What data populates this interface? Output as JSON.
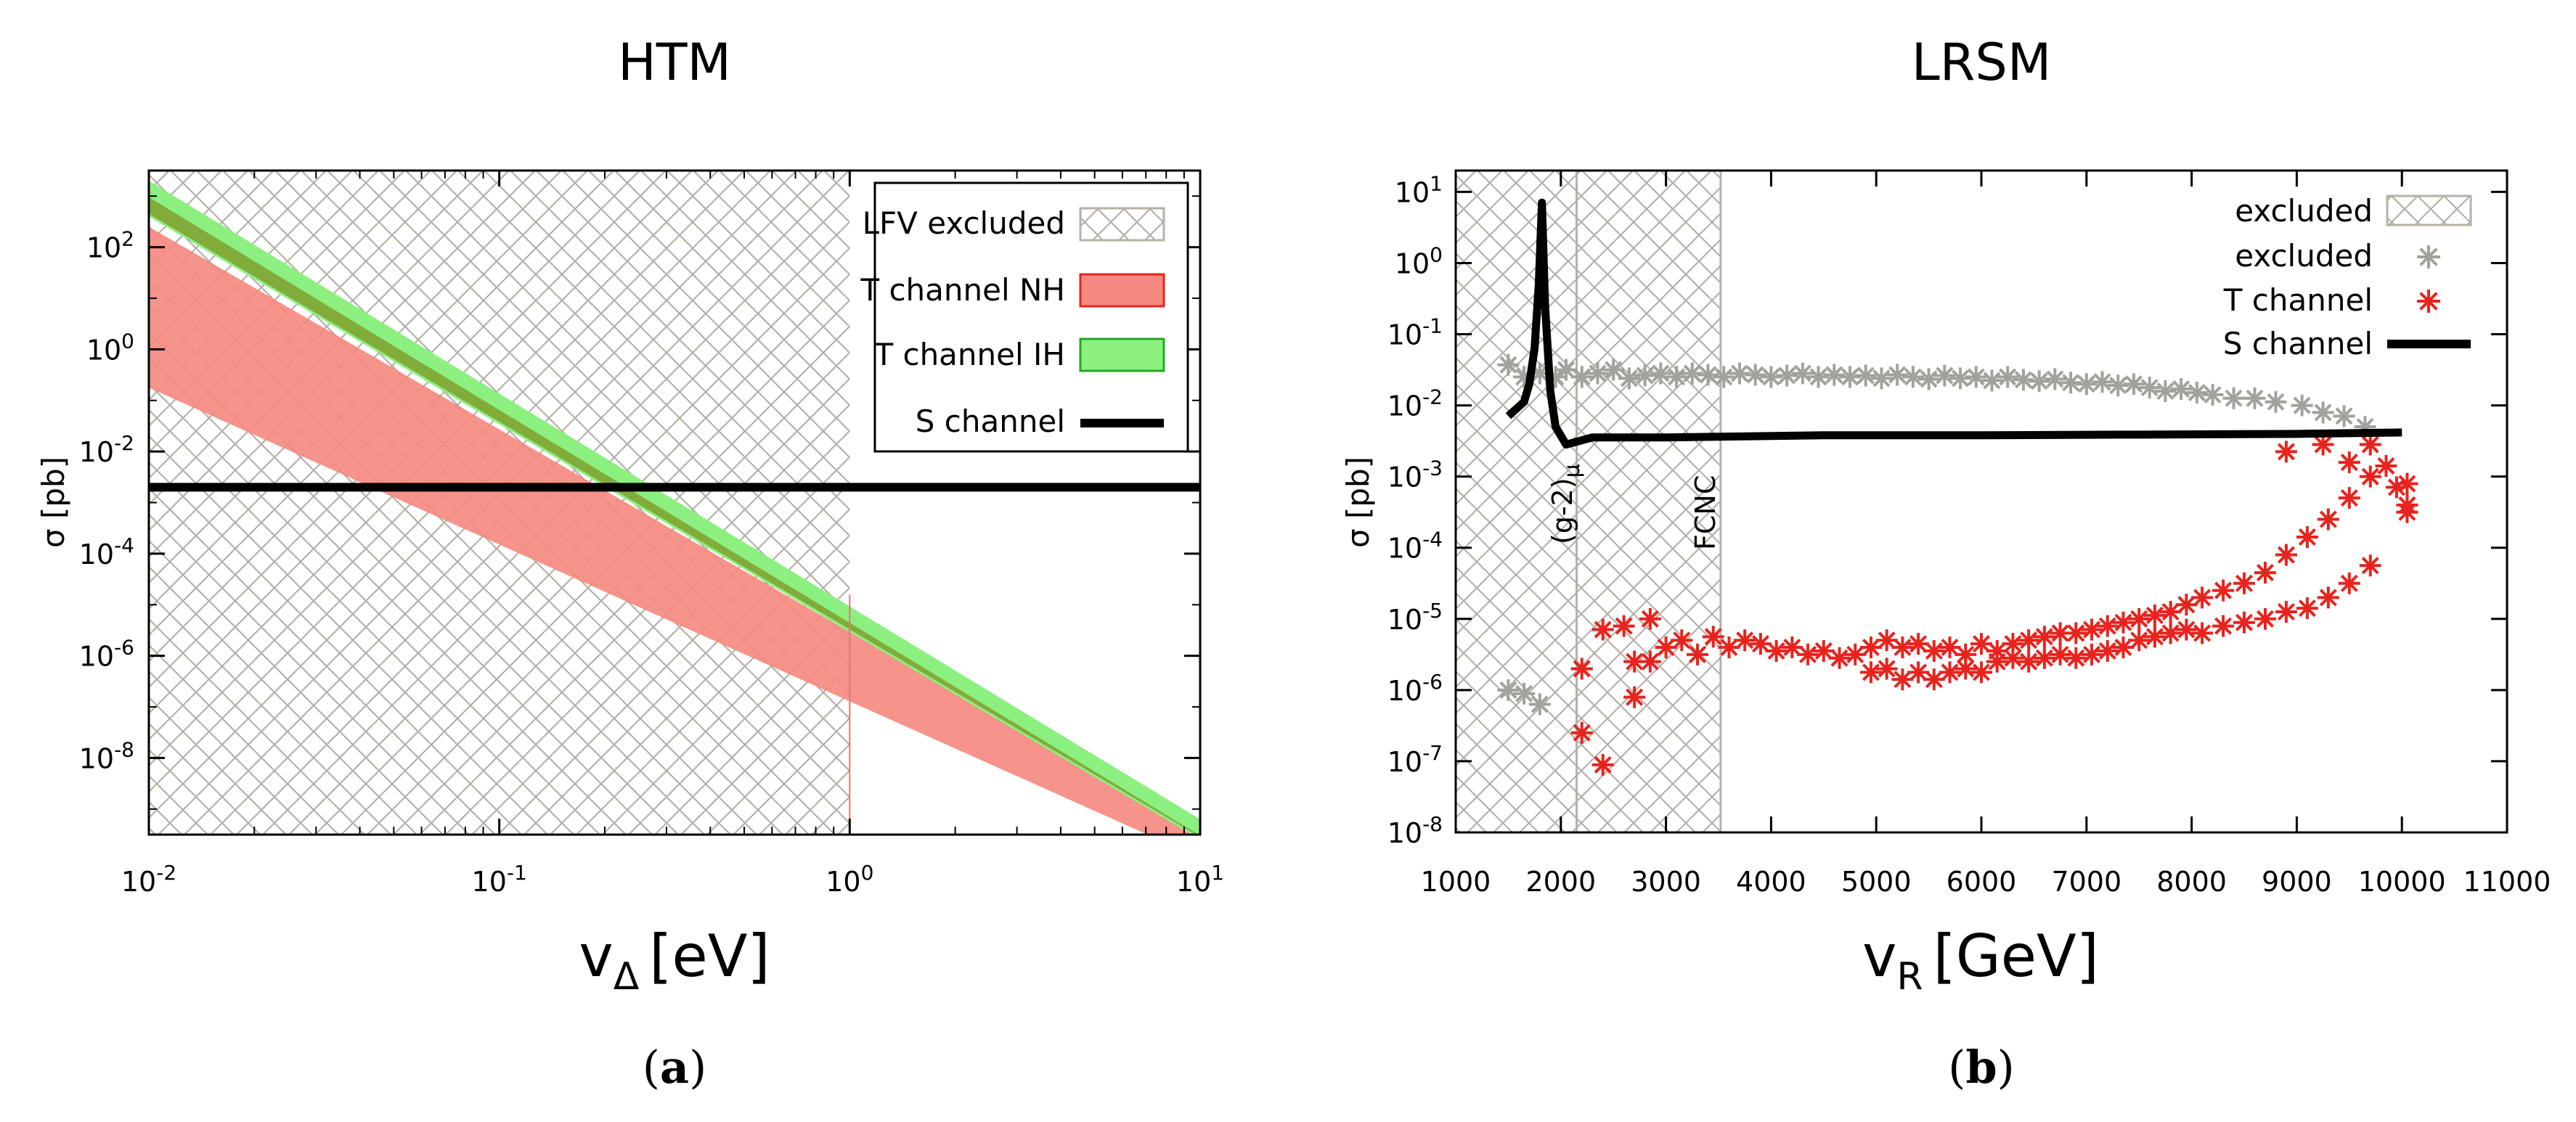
{
  "chart_data": [
    {
      "id": "a",
      "type": "area",
      "title": "HTM",
      "subfigure_label": "(a)",
      "xlabel": "v",
      "xlabel_sub": "Δ",
      "xlabel_unit": "[eV]",
      "ylabel": "σ [pb]",
      "xscale": "log",
      "yscale": "log",
      "xlim_log10": [
        -2,
        1
      ],
      "ylim_log10": [
        -9.5,
        3.5
      ],
      "x_ticks": [
        {
          "base": "10",
          "exp": "-2",
          "v": -2
        },
        {
          "base": "10",
          "exp": "-1",
          "v": -1
        },
        {
          "base": "10",
          "exp": "0",
          "v": 0
        },
        {
          "base": "10",
          "exp": "1",
          "v": 1
        }
      ],
      "y_ticks": [
        {
          "base": "10",
          "exp": "2",
          "v": 2
        },
        {
          "base": "10",
          "exp": "0",
          "v": 0
        },
        {
          "base": "10",
          "exp": "-2",
          "v": -2
        },
        {
          "base": "10",
          "exp": "-4",
          "v": -4
        },
        {
          "base": "10",
          "exp": "-6",
          "v": -6
        },
        {
          "base": "10",
          "exp": "-8",
          "v": -8
        }
      ],
      "excluded_region_log10_x": [
        -2,
        0
      ],
      "series": [
        {
          "name": "LFV excluded",
          "kind": "hatch",
          "color": "#b5b1a8"
        },
        {
          "name": "T channel NH",
          "kind": "band",
          "color": "#f58a80",
          "upper_log10": [
            [
              -2,
              2.4
            ],
            [
              1,
              -9.5
            ]
          ],
          "lower_log10": [
            [
              -2,
              -0.75
            ],
            [
              0.85,
              -9.5
            ]
          ]
        },
        {
          "name": "T channel IH",
          "kind": "band",
          "color": "#8cf080",
          "overlap_color": "#82ac3a",
          "upper_log10": [
            [
              -2,
              3.3
            ],
            [
              1,
              -9.2
            ]
          ],
          "lower_log10": [
            [
              -2,
              2.6
            ],
            [
              1,
              -9.6
            ]
          ]
        },
        {
          "name": "S channel",
          "kind": "line",
          "color": "#000000",
          "y_log10": -2.7
        }
      ]
    },
    {
      "id": "b",
      "type": "scatter",
      "title": "LRSM",
      "subfigure_label": "(b)",
      "xlabel": "v",
      "xlabel_sub": "R",
      "xlabel_unit": "[GeV]",
      "ylabel": "σ [pb]",
      "xscale": "linear",
      "yscale": "log",
      "xlim": [
        1000,
        11000
      ],
      "ylim_log10": [
        -8,
        1.3
      ],
      "x_ticks": [
        1000,
        2000,
        3000,
        4000,
        5000,
        6000,
        7000,
        8000,
        9000,
        10000,
        11000
      ],
      "y_ticks": [
        {
          "base": "10",
          "exp": "1",
          "v": 1
        },
        {
          "base": "10",
          "exp": "0",
          "v": 0
        },
        {
          "base": "10",
          "exp": "-1",
          "v": -1
        },
        {
          "base": "10",
          "exp": "-2",
          "v": -2
        },
        {
          "base": "10",
          "exp": "-3",
          "v": -3
        },
        {
          "base": "10",
          "exp": "-4",
          "v": -4
        },
        {
          "base": "10",
          "exp": "-5",
          "v": -5
        },
        {
          "base": "10",
          "exp": "-6",
          "v": -6
        },
        {
          "base": "10",
          "exp": "-7",
          "v": -7
        },
        {
          "base": "10",
          "exp": "-8",
          "v": -8
        }
      ],
      "excluded_regions_x": [
        [
          1000,
          2150
        ],
        [
          2150,
          3520
        ]
      ],
      "annotations": [
        {
          "text": "(g-2)",
          "sub": "μ",
          "x": 2150
        },
        {
          "text": "FCNC",
          "x": 3520
        }
      ],
      "series": [
        {
          "name": "excluded",
          "kind": "hatch",
          "color": "#b5b1a8"
        },
        {
          "name": "excluded",
          "kind": "scatter",
          "marker": "star",
          "color": "#a3a19b",
          "points_x_log10": [
            [
              1500,
              -1.43
            ],
            [
              1650,
              -1.6
            ],
            [
              1800,
              -1.55
            ],
            [
              1950,
              -1.6
            ],
            [
              2050,
              -1.5
            ],
            [
              2200,
              -1.6
            ],
            [
              2350,
              -1.55
            ],
            [
              2500,
              -1.5
            ],
            [
              2650,
              -1.62
            ],
            [
              2800,
              -1.58
            ],
            [
              2950,
              -1.55
            ],
            [
              3100,
              -1.6
            ],
            [
              3250,
              -1.55
            ],
            [
              3400,
              -1.57
            ],
            [
              3550,
              -1.6
            ],
            [
              3700,
              -1.55
            ],
            [
              3850,
              -1.57
            ],
            [
              4000,
              -1.6
            ],
            [
              4150,
              -1.58
            ],
            [
              4300,
              -1.55
            ],
            [
              4450,
              -1.6
            ],
            [
              4600,
              -1.57
            ],
            [
              4750,
              -1.6
            ],
            [
              4900,
              -1.58
            ],
            [
              5050,
              -1.62
            ],
            [
              5200,
              -1.57
            ],
            [
              5350,
              -1.6
            ],
            [
              5500,
              -1.63
            ],
            [
              5650,
              -1.58
            ],
            [
              5800,
              -1.62
            ],
            [
              5950,
              -1.6
            ],
            [
              6100,
              -1.65
            ],
            [
              6250,
              -1.6
            ],
            [
              6400,
              -1.64
            ],
            [
              6550,
              -1.66
            ],
            [
              6700,
              -1.63
            ],
            [
              6850,
              -1.68
            ],
            [
              7000,
              -1.7
            ],
            [
              7150,
              -1.67
            ],
            [
              7300,
              -1.72
            ],
            [
              7450,
              -1.7
            ],
            [
              7600,
              -1.75
            ],
            [
              7750,
              -1.8
            ],
            [
              7900,
              -1.77
            ],
            [
              8050,
              -1.82
            ],
            [
              8200,
              -1.85
            ],
            [
              8400,
              -1.9
            ],
            [
              8600,
              -1.9
            ],
            [
              8800,
              -1.95
            ],
            [
              9050,
              -2.0
            ],
            [
              9250,
              -2.1
            ],
            [
              9450,
              -2.15
            ],
            [
              9650,
              -2.3
            ],
            [
              1500,
              -6.0
            ],
            [
              1650,
              -6.05
            ],
            [
              1800,
              -6.2
            ]
          ]
        },
        {
          "name": "T channel",
          "kind": "scatter",
          "marker": "star",
          "color": "#e8231d",
          "points_x_log10": [
            [
              2200,
              -5.7
            ],
            [
              2200,
              -6.6
            ],
            [
              2400,
              -7.05
            ],
            [
              2400,
              -5.15
            ],
            [
              2600,
              -5.1
            ],
            [
              2700,
              -6.1
            ],
            [
              2700,
              -5.6
            ],
            [
              2850,
              -5.0
            ],
            [
              2850,
              -5.6
            ],
            [
              3000,
              -5.4
            ],
            [
              3150,
              -5.3
            ],
            [
              3300,
              -5.5
            ],
            [
              3450,
              -5.25
            ],
            [
              3600,
              -5.4
            ],
            [
              3750,
              -5.3
            ],
            [
              3900,
              -5.35
            ],
            [
              4050,
              -5.45
            ],
            [
              4200,
              -5.4
            ],
            [
              4350,
              -5.5
            ],
            [
              4500,
              -5.45
            ],
            [
              4650,
              -5.55
            ],
            [
              4800,
              -5.5
            ],
            [
              4950,
              -5.4
            ],
            [
              4950,
              -5.75
            ],
            [
              5100,
              -5.3
            ],
            [
              5100,
              -5.7
            ],
            [
              5250,
              -5.4
            ],
            [
              5250,
              -5.85
            ],
            [
              5400,
              -5.35
            ],
            [
              5400,
              -5.75
            ],
            [
              5550,
              -5.45
            ],
            [
              5550,
              -5.85
            ],
            [
              5700,
              -5.4
            ],
            [
              5700,
              -5.75
            ],
            [
              5850,
              -5.5
            ],
            [
              5850,
              -5.7
            ],
            [
              6000,
              -5.35
            ],
            [
              6000,
              -5.75
            ],
            [
              6150,
              -5.45
            ],
            [
              6150,
              -5.6
            ],
            [
              6300,
              -5.35
            ],
            [
              6300,
              -5.55
            ],
            [
              6450,
              -5.3
            ],
            [
              6450,
              -5.6
            ],
            [
              6600,
              -5.25
            ],
            [
              6600,
              -5.55
            ],
            [
              6750,
              -5.2
            ],
            [
              6750,
              -5.5
            ],
            [
              6900,
              -5.2
            ],
            [
              6900,
              -5.55
            ],
            [
              7050,
              -5.15
            ],
            [
              7050,
              -5.5
            ],
            [
              7200,
              -5.1
            ],
            [
              7200,
              -5.45
            ],
            [
              7350,
              -5.05
            ],
            [
              7350,
              -5.4
            ],
            [
              7500,
              -5.0
            ],
            [
              7500,
              -5.3
            ],
            [
              7650,
              -4.95
            ],
            [
              7650,
              -5.25
            ],
            [
              7800,
              -4.9
            ],
            [
              7800,
              -5.2
            ],
            [
              7950,
              -4.8
            ],
            [
              7950,
              -5.15
            ],
            [
              8100,
              -4.7
            ],
            [
              8100,
              -5.2
            ],
            [
              8300,
              -4.6
            ],
            [
              8300,
              -5.1
            ],
            [
              8500,
              -4.5
            ],
            [
              8500,
              -5.05
            ],
            [
              8700,
              -4.35
            ],
            [
              8700,
              -5.0
            ],
            [
              8900,
              -4.1
            ],
            [
              8900,
              -4.9
            ],
            [
              9100,
              -3.85
            ],
            [
              9100,
              -4.85
            ],
            [
              9300,
              -3.6
            ],
            [
              9300,
              -4.7
            ],
            [
              9500,
              -3.3
            ],
            [
              9500,
              -4.5
            ],
            [
              9700,
              -3.0
            ],
            [
              9700,
              -4.25
            ],
            [
              9850,
              -2.85
            ],
            [
              10050,
              -3.1
            ],
            [
              10050,
              -3.5
            ],
            [
              10050,
              -3.4
            ],
            [
              9950,
              -3.15
            ],
            [
              9700,
              -2.55
            ],
            [
              9250,
              -2.55
            ],
            [
              8900,
              -2.65
            ],
            [
              9500,
              -2.8
            ]
          ]
        },
        {
          "name": "S channel",
          "kind": "line",
          "color": "#000000",
          "points_x_log10": [
            [
              1500,
              -2.15
            ],
            [
              1650,
              -1.95
            ],
            [
              1700,
              -1.7
            ],
            [
              1750,
              -1.2
            ],
            [
              1790,
              -0.3
            ],
            [
              1820,
              0.85
            ],
            [
              1850,
              -0.6
            ],
            [
              1900,
              -1.8
            ],
            [
              1950,
              -2.3
            ],
            [
              2050,
              -2.55
            ],
            [
              2300,
              -2.45
            ],
            [
              3000,
              -2.45
            ],
            [
              4500,
              -2.42
            ],
            [
              6000,
              -2.42
            ],
            [
              7500,
              -2.41
            ],
            [
              9000,
              -2.4
            ],
            [
              10000,
              -2.38
            ]
          ]
        }
      ]
    }
  ]
}
